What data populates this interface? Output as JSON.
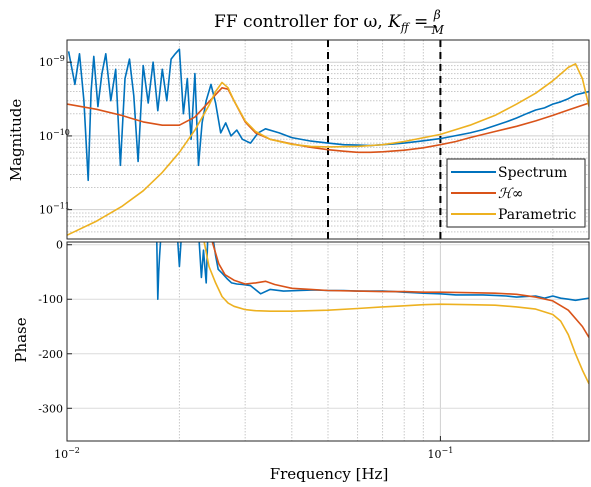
{
  "chart_data": [
    {
      "type": "line",
      "panel": "magnitude",
      "title": "FF controller for ω, K_ff = β/M",
      "title_parts": {
        "prefix": "FF controller for ω, ",
        "lhs": "K",
        "lhs_sub": "ff",
        "equals": " = ",
        "num": "β",
        "den": "M"
      },
      "xlabel": "",
      "ylabel": "Magnitude",
      "x_scale": "log",
      "y_scale": "log",
      "xlim": [
        0.01,
        0.25
      ],
      "ylim": [
        4e-12,
        2e-09
      ],
      "grid": true,
      "x_ticks": [
        {
          "value": 0.01,
          "mant": "10",
          "exp": "−2"
        },
        {
          "value": 0.1,
          "mant": "10",
          "exp": "−1"
        }
      ],
      "y_ticks": [
        {
          "value": 1e-11,
          "mant": "10",
          "exp": "−11"
        },
        {
          "value": 1e-10,
          "mant": "10",
          "exp": "−10"
        },
        {
          "value": 1e-09,
          "mant": "10",
          "exp": "−9"
        }
      ],
      "vlines": [
        0.05,
        0.1
      ],
      "legend": {
        "placement": "bottom-right",
        "entries": [
          "Spectrum",
          "ℋ∞",
          "Parametric"
        ]
      },
      "series": [
        {
          "name": "Spectrum",
          "color": "#0072BD",
          "x": [
            0.0101,
            0.0105,
            0.0108,
            0.0111,
            0.0114,
            0.0116,
            0.0118,
            0.0121,
            0.0124,
            0.0127,
            0.0131,
            0.0135,
            0.0139,
            0.0143,
            0.0147,
            0.0151,
            0.0155,
            0.016,
            0.0165,
            0.017,
            0.0175,
            0.018,
            0.0185,
            0.019,
            0.0195,
            0.02,
            0.0205,
            0.021,
            0.0215,
            0.022,
            0.0225,
            0.023,
            0.0236,
            0.0243,
            0.025,
            0.0258,
            0.0266,
            0.0275,
            0.0285,
            0.0295,
            0.031,
            0.0325,
            0.034,
            0.037,
            0.04,
            0.045,
            0.05,
            0.055,
            0.06,
            0.065,
            0.07,
            0.075,
            0.08,
            0.09,
            0.1,
            0.11,
            0.12,
            0.13,
            0.14,
            0.15,
            0.16,
            0.17,
            0.18,
            0.19,
            0.2,
            0.21,
            0.22,
            0.23,
            0.24,
            0.25
          ],
          "y": [
            1.4e-09,
            5e-10,
            1.3e-09,
            3e-10,
            2.5e-11,
            4e-10,
            1.2e-09,
            2.5e-10,
            7e-10,
            1.3e-09,
            3e-10,
            8e-10,
            4e-11,
            6e-10,
            1.1e-09,
            3.5e-10,
            4.5e-11,
            9e-10,
            2.8e-10,
            1e-09,
            2.2e-10,
            8e-10,
            3e-10,
            1.1e-09,
            1.3e-09,
            1.5e-09,
            2e-10,
            6e-10,
            9e-11,
            7e-10,
            4e-11,
            1.5e-10,
            3e-10,
            5e-10,
            2.8e-10,
            1.1e-10,
            1.5e-10,
            1e-10,
            1.2e-10,
            9e-11,
            8e-11,
            1.1e-10,
            1.25e-10,
            1.1e-10,
            9.5e-11,
            8.5e-11,
            8e-11,
            7.6e-11,
            7.5e-11,
            7.4e-11,
            7.6e-11,
            7.8e-11,
            8e-11,
            8.6e-11,
            9.2e-11,
            1.01e-10,
            1.1e-10,
            1.22e-10,
            1.38e-10,
            1.55e-10,
            1.75e-10,
            2e-10,
            2.25e-10,
            2.4e-10,
            2.7e-10,
            2.9e-10,
            3.2e-10,
            3.6e-10,
            3.8e-10,
            4e-10
          ]
        },
        {
          "name": "ℋ∞",
          "color": "#D95319",
          "x": [
            0.01,
            0.012,
            0.014,
            0.016,
            0.018,
            0.02,
            0.022,
            0.024,
            0.026,
            0.027,
            0.028,
            0.03,
            0.032,
            0.035,
            0.04,
            0.045,
            0.05,
            0.055,
            0.06,
            0.065,
            0.07,
            0.08,
            0.09,
            0.1,
            0.11,
            0.12,
            0.14,
            0.16,
            0.18,
            0.2,
            0.22,
            0.25
          ],
          "y": [
            2.7e-10,
            2.3e-10,
            1.9e-10,
            1.55e-10,
            1.4e-10,
            1.4e-10,
            1.8e-10,
            2.9e-10,
            4.5e-10,
            4.3e-10,
            3e-10,
            1.55e-10,
            1.1e-10,
            9e-11,
            7.8e-11,
            7e-11,
            6.5e-11,
            6.2e-11,
            6e-11,
            6e-11,
            6.1e-11,
            6.4e-11,
            6.9e-11,
            7.6e-11,
            8.4e-11,
            9.5e-11,
            1.15e-10,
            1.35e-10,
            1.6e-10,
            1.9e-10,
            2.25e-10,
            2.8e-10
          ]
        },
        {
          "name": "Parametric",
          "color": "#EDB120",
          "x": [
            0.01,
            0.012,
            0.014,
            0.016,
            0.018,
            0.02,
            0.022,
            0.024,
            0.025,
            0.026,
            0.027,
            0.028,
            0.03,
            0.032,
            0.035,
            0.04,
            0.045,
            0.05,
            0.06,
            0.07,
            0.08,
            0.1,
            0.12,
            0.14,
            0.16,
            0.18,
            0.2,
            0.22,
            0.23,
            0.24,
            0.25
          ],
          "y": [
            4.5e-12,
            7e-12,
            1.1e-11,
            1.8e-11,
            3.2e-11,
            6e-11,
            1.2e-10,
            2.6e-10,
            4e-10,
            5.3e-10,
            4.5e-10,
            3e-10,
            1.6e-10,
            1.15e-10,
            9e-11,
            7.7e-11,
            7.2e-11,
            7.1e-11,
            7.2e-11,
            7.6e-11,
            8.4e-11,
            1.05e-10,
            1.4e-10,
            1.9e-10,
            2.7e-10,
            3.8e-10,
            5.6e-10,
            8.5e-10,
            9.5e-10,
            6e-10,
            2.5e-10
          ]
        }
      ]
    },
    {
      "type": "line",
      "panel": "phase",
      "title": "",
      "xlabel": "Frequency [Hz]",
      "ylabel": "Phase",
      "x_scale": "log",
      "xlim": [
        0.01,
        0.25
      ],
      "ylim": [
        -360,
        5
      ],
      "grid": true,
      "x_ticks": [
        {
          "value": 0.01,
          "mant": "10",
          "exp": "−2"
        },
        {
          "value": 0.1,
          "mant": "10",
          "exp": "−1"
        }
      ],
      "y_ticks": [
        {
          "value": 0,
          "label": "0"
        },
        {
          "value": -100,
          "label": "-100"
        },
        {
          "value": -200,
          "label": "-200"
        },
        {
          "value": -300,
          "label": "-300"
        }
      ],
      "series": [
        {
          "name": "Spectrum",
          "color": "#0072BD",
          "segments": [
            {
              "x": [
                0.0174,
                0.0175,
                0.0176,
                0.0177,
                0.0178
              ],
              "y": [
                5,
                -100,
                -50,
                -20,
                5
              ]
            },
            {
              "x": [
                0.0198,
                0.02,
                0.0202
              ],
              "y": [
                5,
                -40,
                5
              ]
            },
            {
              "x": [
                0.0226,
                0.0229,
                0.0232,
                0.0236,
                0.0238
              ],
              "y": [
                5,
                -60,
                -10,
                -70,
                5
              ]
            },
            {
              "x": [
                0.0247,
                0.025,
                0.0254,
                0.026,
                0.0268,
                0.0276,
                0.0285,
                0.0295,
                0.031,
                0.033,
                0.035,
                0.038,
                0.042,
                0.046,
                0.05,
                0.055,
                0.06,
                0.065,
                0.07,
                0.075,
                0.08,
                0.085,
                0.09,
                0.1,
                0.11,
                0.12,
                0.13,
                0.14,
                0.15,
                0.16,
                0.17,
                0.18,
                0.19,
                0.2,
                0.21,
                0.22,
                0.23,
                0.24,
                0.25
              ],
              "y": [
                5,
                -20,
                -45,
                -52,
                -62,
                -70,
                -72,
                -73,
                -75,
                -90,
                -82,
                -85,
                -84,
                -83,
                -84,
                -84,
                -85,
                -85,
                -85,
                -86,
                -87,
                -88,
                -89,
                -90,
                -92,
                -92,
                -92,
                -93,
                -94,
                -96,
                -95,
                -94,
                -98,
                -94,
                -98,
                -100,
                -102,
                -100,
                -98
              ]
            }
          ]
        },
        {
          "name": "ℋ∞",
          "color": "#D95319",
          "segments": [
            {
              "x": [
                0.0245,
                0.0255,
                0.0265,
                0.028,
                0.03,
                0.032,
                0.034,
                0.036,
                0.04,
                0.045,
                0.05,
                0.06,
                0.07,
                0.08,
                0.09,
                0.1,
                0.12,
                0.14,
                0.16,
                0.18,
                0.2,
                0.22,
                0.24,
                0.25
              ],
              "y": [
                5,
                -35,
                -55,
                -65,
                -72,
                -70,
                -67,
                -73,
                -80,
                -82,
                -84,
                -85,
                -86,
                -86,
                -87,
                -87,
                -88,
                -89,
                -91,
                -96,
                -103,
                -120,
                -150,
                -170
              ]
            }
          ]
        },
        {
          "name": "Parametric",
          "color": "#EDB120",
          "segments": [
            {
              "x": [
                0.0233,
                0.024,
                0.025,
                0.026,
                0.027,
                0.028,
                0.03,
                0.032,
                0.035,
                0.04,
                0.05,
                0.06,
                0.07,
                0.08,
                0.09,
                0.1,
                0.12,
                0.14,
                0.16,
                0.18,
                0.2,
                0.21,
                0.22,
                0.23,
                0.24,
                0.25
              ],
              "y": [
                5,
                -40,
                -70,
                -95,
                -107,
                -113,
                -119,
                -121,
                -122,
                -122,
                -120,
                -117,
                -114,
                -112,
                -110,
                -109,
                -110,
                -111,
                -114,
                -118,
                -128,
                -140,
                -165,
                -200,
                -230,
                -255
              ]
            }
          ]
        }
      ]
    }
  ]
}
